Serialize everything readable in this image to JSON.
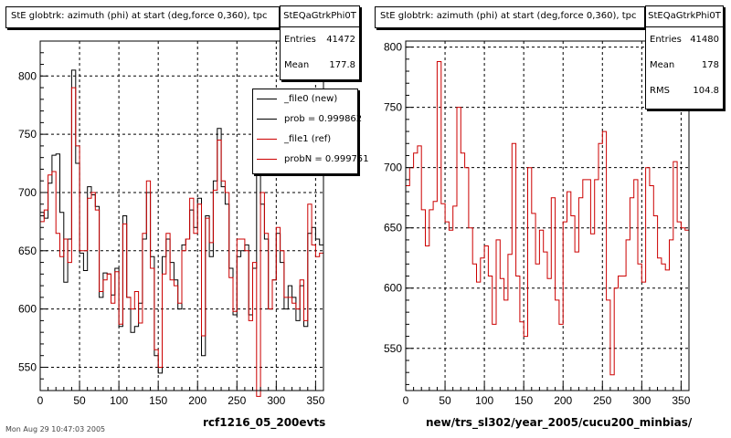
{
  "panels": [
    {
      "title": "StE globtrk: azimuth (phi) at start (deg,force 0,360), tpc",
      "stats": {
        "name": "StEQaGtrkPhi0T",
        "rows": [
          {
            "label": "Entries",
            "value": "41472"
          },
          {
            "label": "Mean",
            "value": "177.8"
          }
        ]
      },
      "legend": [
        {
          "label": "_file0 (new)",
          "color": "#000000"
        },
        {
          "label": "prob = 0.999862",
          "color": "#000000"
        },
        {
          "label": "_file1 (ref)",
          "color": "#cc0000"
        },
        {
          "label": "probN = 0.999751",
          "color": "#cc0000"
        }
      ],
      "xlabel": "rcf1216_05_200evts"
    },
    {
      "title": "StE globtrk: azimuth (phi) at start (deg,force 0,360), tpc",
      "stats": {
        "name": "StEQaGtrkPhi0T",
        "rows": [
          {
            "label": "Entries",
            "value": "41480"
          },
          {
            "label": "Mean",
            "value": "178"
          },
          {
            "label": "RMS",
            "value": "104.8"
          }
        ]
      },
      "xlabel": "new/trs_sl302/year_2005/cucu200_minbias/"
    }
  ],
  "footer": "Mon Aug 29 10:47:03 2005",
  "chart_data": [
    {
      "type": "line",
      "x": [
        0,
        5,
        10,
        15,
        20,
        25,
        30,
        35,
        40,
        45,
        50,
        55,
        60,
        65,
        70,
        75,
        80,
        85,
        90,
        95,
        100,
        105,
        110,
        115,
        120,
        125,
        130,
        135,
        140,
        145,
        150,
        155,
        160,
        165,
        170,
        175,
        180,
        185,
        190,
        195,
        200,
        205,
        210,
        215,
        220,
        225,
        230,
        235,
        240,
        245,
        250,
        255,
        260,
        265,
        270,
        275,
        280,
        285,
        290,
        295,
        300,
        305,
        310,
        315,
        320,
        325,
        330,
        335,
        340,
        345,
        350,
        355
      ],
      "xlim": [
        0,
        360
      ],
      "ylim": [
        530,
        830
      ],
      "xticks": [
        0,
        50,
        100,
        150,
        200,
        250,
        300,
        350
      ],
      "yticks": [
        550,
        600,
        650,
        700,
        750,
        800
      ],
      "grid": true,
      "series": [
        {
          "name": "_file0 (new)",
          "color": "#000000",
          "values": [
            683,
            678,
            708,
            732,
            733,
            683,
            623,
            660,
            805,
            725,
            648,
            633,
            705,
            698,
            688,
            610,
            631,
            630,
            612,
            635,
            585,
            680,
            610,
            580,
            585,
            605,
            660,
            700,
            645,
            560,
            545,
            645,
            660,
            640,
            625,
            600,
            655,
            660,
            685,
            670,
            695,
            560,
            680,
            645,
            710,
            755,
            705,
            690,
            635,
            595,
            645,
            650,
            655,
            595,
            635,
            720,
            690,
            660,
            600,
            625,
            665,
            640,
            600,
            620,
            610,
            590,
            620,
            585,
            665,
            670,
            660,
            655
          ]
        },
        {
          "name": "_file1 (ref)",
          "color": "#cc0000",
          "values": [
            675,
            685,
            715,
            718,
            665,
            645,
            660,
            640,
            790,
            740,
            650,
            650,
            695,
            700,
            685,
            615,
            625,
            630,
            605,
            632,
            587,
            673,
            610,
            600,
            615,
            588,
            665,
            710,
            635,
            565,
            550,
            630,
            665,
            625,
            620,
            605,
            650,
            660,
            695,
            665,
            690,
            577,
            678,
            657,
            702,
            745,
            710,
            700,
            627,
            598,
            660,
            660,
            650,
            590,
            640,
            525,
            700,
            665,
            600,
            625,
            670,
            650,
            610,
            610,
            605,
            600,
            625,
            590,
            690,
            655,
            645,
            648
          ]
        }
      ]
    },
    {
      "type": "line",
      "x": [
        0,
        5,
        10,
        15,
        20,
        25,
        30,
        35,
        40,
        45,
        50,
        55,
        60,
        65,
        70,
        75,
        80,
        85,
        90,
        95,
        100,
        105,
        110,
        115,
        120,
        125,
        130,
        135,
        140,
        145,
        150,
        155,
        160,
        165,
        170,
        175,
        180,
        185,
        190,
        195,
        200,
        205,
        210,
        215,
        220,
        225,
        230,
        235,
        240,
        245,
        250,
        255,
        260,
        265,
        270,
        275,
        280,
        285,
        290,
        295,
        300,
        305,
        310,
        315,
        320,
        325,
        330,
        335,
        340,
        345,
        350,
        355
      ],
      "xlim": [
        0,
        360
      ],
      "ylim": [
        515,
        805
      ],
      "xticks": [
        0,
        50,
        100,
        150,
        200,
        250,
        300,
        350
      ],
      "yticks": [
        550,
        600,
        650,
        700,
        750,
        800
      ],
      "grid": true,
      "series": [
        {
          "name": "_file1 (ref)",
          "color": "#cc0000",
          "values": [
            685,
            700,
            712,
            718,
            665,
            635,
            665,
            672,
            788,
            670,
            655,
            648,
            668,
            750,
            712,
            700,
            650,
            620,
            605,
            625,
            635,
            610,
            570,
            640,
            608,
            590,
            628,
            720,
            610,
            572,
            560,
            700,
            662,
            620,
            648,
            630,
            608,
            675,
            590,
            570,
            655,
            680,
            660,
            630,
            675,
            690,
            690,
            645,
            690,
            720,
            730,
            590,
            528,
            600,
            610,
            610,
            640,
            675,
            690,
            620,
            605,
            700,
            685,
            660,
            625,
            620,
            615,
            640,
            705,
            655,
            650,
            648
          ]
        }
      ]
    }
  ]
}
